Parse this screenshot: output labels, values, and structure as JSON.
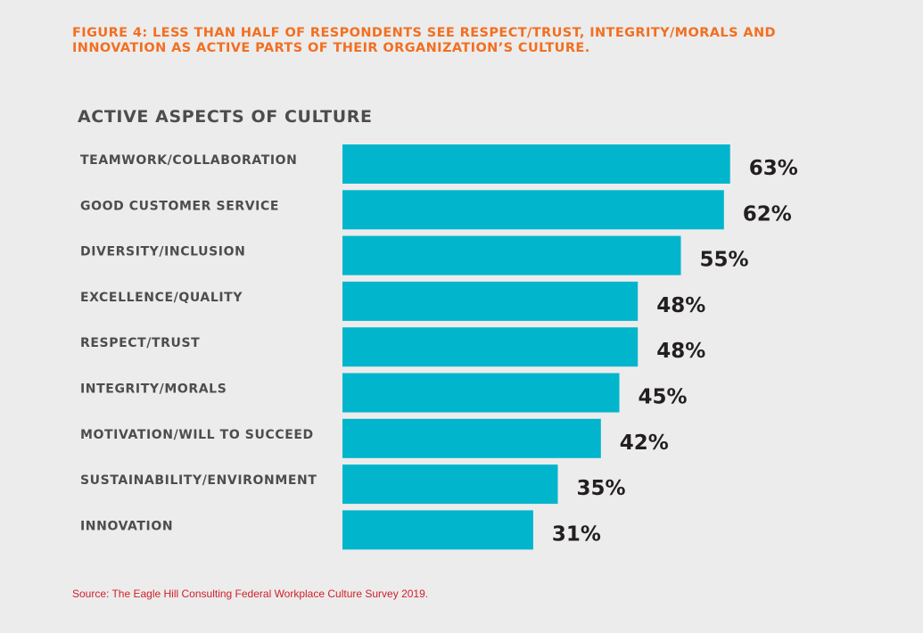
{
  "figure_title_line1": "FIGURE 4: LESS THAN HALF OF RESPONDENTS SEE RESPECT/TRUST, INTEGRITY/MORALS AND",
  "figure_title_line2": "INNOVATION AS ACTIVE PARTS OF THEIR ORGANIZATION’S CULTURE.",
  "source": "Source: The Eagle Hill Consulting Federal Workplace Culture Survey 2019.",
  "colors": {
    "figure_title": "#f26f21",
    "bar": "#00b5cc",
    "category_label": "#4d4d4f",
    "value_label": "#231f20",
    "source": "#d0202a"
  },
  "chart_data": {
    "type": "bar",
    "orientation": "horizontal",
    "title": "ACTIVE ASPECTS OF CULTURE",
    "xlabel": "",
    "ylabel": "",
    "xlim": [
      0,
      100
    ],
    "grid": false,
    "legend": "none",
    "value_suffix": "%",
    "categories": [
      "TEAMWORK/COLLABORATION",
      "GOOD CUSTOMER SERVICE",
      "DIVERSITY/INCLUSION",
      "EXCELLENCE/QUALITY",
      "RESPECT/TRUST",
      "INTEGRITY/MORALS",
      "MOTIVATION/WILL TO SUCCEED",
      "SUSTAINABILITY/ENVIRONMENT",
      "INNOVATION"
    ],
    "values": [
      63,
      62,
      55,
      48,
      48,
      45,
      42,
      35,
      31
    ],
    "value_labels": [
      "63%",
      "62%",
      "55%",
      "48%",
      "48%",
      "45%",
      "42%",
      "35%",
      "31%"
    ]
  }
}
